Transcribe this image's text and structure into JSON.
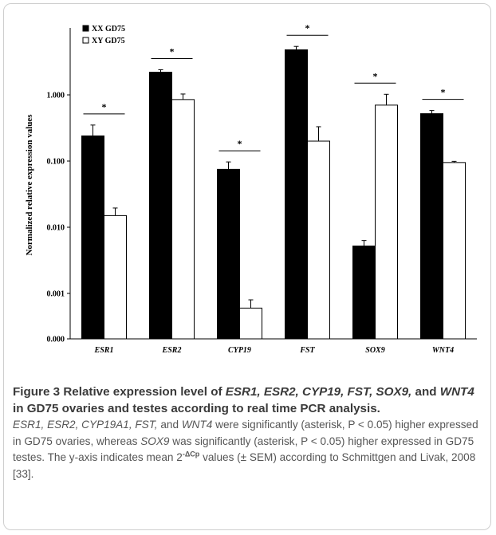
{
  "chart_data": {
    "type": "bar",
    "yscale": "log",
    "ylabel": "Normalized relative expression values",
    "yticks": [
      "0.000",
      "0.001",
      "0.010",
      "0.100",
      "1.000"
    ],
    "categories": [
      "ESR1",
      "ESR2",
      "CYP19",
      "FST",
      "SOX9",
      "WNT4"
    ],
    "series": [
      {
        "name": "XX GD75",
        "color": "#000000",
        "values": [
          0.24,
          2.2,
          0.075,
          4.8,
          0.0052,
          0.52
        ],
        "errors": [
          0.11,
          0.2,
          0.022,
          0.6,
          0.0011,
          0.06
        ]
      },
      {
        "name": "XY GD75",
        "color": "#ffffff",
        "values": [
          0.015,
          0.85,
          0.0006,
          0.2,
          0.7,
          0.095
        ],
        "errors": [
          0.0045,
          0.18,
          0.0002,
          0.13,
          0.32,
          0.004
        ]
      }
    ],
    "significance": [
      "*",
      "*",
      "*",
      "*",
      "*",
      "*"
    ],
    "grid": false,
    "legend_position": "top-left"
  },
  "caption": {
    "figure_label": "Figure 3",
    "title": {
      "t1": "Relative expression level of ",
      "g1": "ESR1, ESR2, CYP19, FST, SOX9,",
      "t2": " and ",
      "g2": "WNT4",
      "t3": " in GD75 ovaries and testes according to real time PCR analysis"
    },
    "body": {
      "g1": "ESR1, ESR2, CYP19A1, FST,",
      "t1": " and ",
      "g2": "WNT4",
      "t2": " were significantly (asterisk, P < 0.05) higher expressed in GD75 ovaries, whereas ",
      "g3": "SOX9",
      "t3": " was significantly (asterisk, P < 0.05) higher expressed in GD75 testes. The y-axis indicates mean 2",
      "sup": "-ΔCp",
      "t4": " values (± SEM) according to Schmittgen and Livak, 2008 [33]."
    }
  }
}
